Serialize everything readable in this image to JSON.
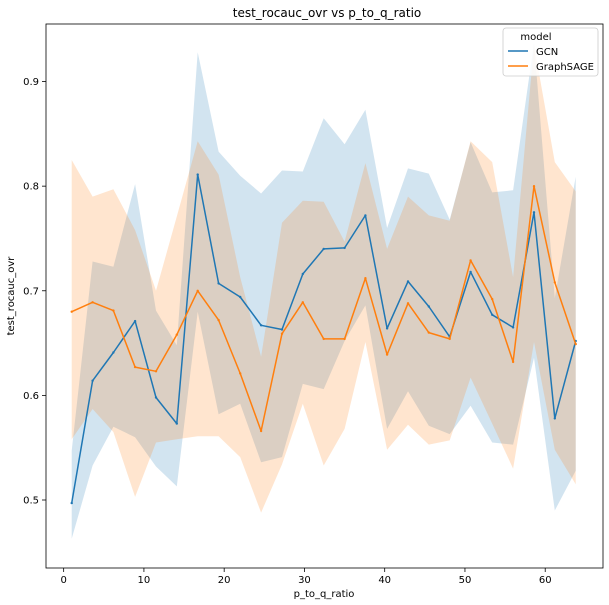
{
  "chart_data": {
    "type": "line",
    "title": "test_rocauc_ovr vs p_to_q_ratio",
    "xlabel": "p_to_q_ratio",
    "ylabel": "test_rocauc_ovr",
    "xlim": [
      -2.2,
      67.2
    ],
    "ylim": [
      0.435,
      0.955
    ],
    "xticks": [
      0,
      10,
      20,
      30,
      40,
      50,
      60
    ],
    "yticks": [
      0.5,
      0.6,
      0.7,
      0.8,
      0.9
    ],
    "legend": {
      "title": "model",
      "placement": "upper right"
    },
    "x": [
      1,
      3.6,
      6.2,
      8.9,
      11.5,
      14.1,
      16.7,
      19.3,
      22.0,
      24.6,
      27.2,
      29.8,
      32.4,
      35.0,
      37.6,
      40.3,
      42.9,
      45.5,
      48.1,
      50.7,
      53.4,
      56.0,
      58.6,
      61.2,
      63.8
    ],
    "series": [
      {
        "name": "GCN",
        "color": "#1f77b4",
        "values": [
          0.497,
          0.614,
          0.641,
          0.671,
          0.598,
          0.573,
          0.811,
          0.707,
          0.694,
          0.667,
          0.663,
          0.716,
          0.74,
          0.741,
          0.772,
          0.664,
          0.709,
          0.685,
          0.656,
          0.718,
          0.677,
          0.665,
          0.775,
          0.578,
          0.652
        ],
        "lower": [
          0.463,
          0.533,
          0.57,
          0.56,
          0.532,
          0.513,
          0.68,
          0.582,
          0.592,
          0.536,
          0.541,
          0.611,
          0.606,
          0.652,
          0.686,
          0.568,
          0.604,
          0.571,
          0.563,
          0.59,
          0.555,
          0.553,
          0.636,
          0.49,
          0.528
        ],
        "upper": [
          0.547,
          0.728,
          0.723,
          0.802,
          0.681,
          0.648,
          0.928,
          0.833,
          0.81,
          0.793,
          0.815,
          0.814,
          0.865,
          0.84,
          0.873,
          0.76,
          0.817,
          0.812,
          0.768,
          0.842,
          0.794,
          0.796,
          0.937,
          0.693,
          0.809
        ]
      },
      {
        "name": "GraphSAGE",
        "color": "#ff7f0e",
        "values": [
          0.68,
          0.689,
          0.681,
          0.627,
          0.623,
          0.658,
          0.7,
          0.672,
          0.621,
          0.566,
          0.659,
          0.689,
          0.654,
          0.654,
          0.712,
          0.639,
          0.688,
          0.66,
          0.654,
          0.729,
          0.692,
          0.632,
          0.8,
          0.708,
          0.649
        ],
        "lower": [
          0.558,
          0.587,
          0.565,
          0.503,
          0.555,
          0.558,
          0.561,
          0.561,
          0.541,
          0.488,
          0.534,
          0.592,
          0.533,
          0.568,
          0.651,
          0.548,
          0.572,
          0.553,
          0.557,
          0.617,
          0.573,
          0.53,
          0.651,
          0.548,
          0.515
        ],
        "upper": [
          0.825,
          0.79,
          0.797,
          0.758,
          0.7,
          0.771,
          0.843,
          0.811,
          0.713,
          0.637,
          0.765,
          0.786,
          0.785,
          0.747,
          0.822,
          0.74,
          0.79,
          0.772,
          0.767,
          0.843,
          0.823,
          0.713,
          0.935,
          0.823,
          0.795
        ]
      }
    ]
  }
}
